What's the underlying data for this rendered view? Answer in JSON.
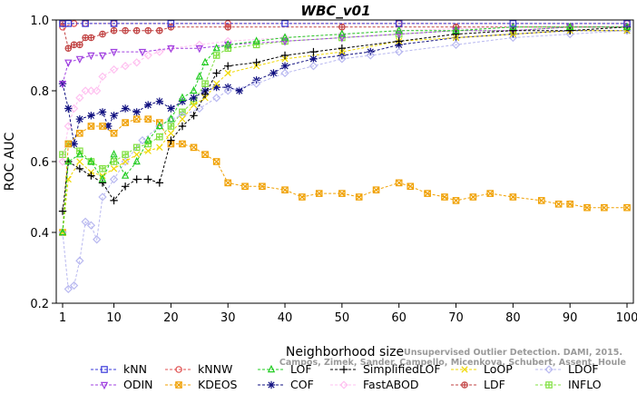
{
  "chart_data": {
    "type": "line",
    "title": "WBC_v01",
    "xlabel": "Neighborhood size",
    "ylabel": "ROC AUC",
    "xlim": [
      1,
      100
    ],
    "ylim": [
      0.2,
      1.0
    ],
    "x_ticks": [
      1,
      10,
      20,
      30,
      40,
      50,
      60,
      70,
      80,
      90,
      100
    ],
    "y_ticks": [
      0.2,
      0.4,
      0.6,
      0.8,
      1.0
    ],
    "x_tick_labels": [
      "1",
      "10",
      "20",
      "30",
      "40",
      "50",
      "60",
      "70",
      "80",
      "90",
      "100"
    ],
    "y_tick_labels": [
      "0.2",
      "0.4",
      "0.6",
      "0.8",
      "1.0"
    ],
    "grid": false,
    "legend_position": "bottom",
    "series": [
      {
        "name": "kNN",
        "color": "#3b3bdb",
        "marker": "square",
        "points": [
          [
            1,
            0.99
          ],
          [
            2,
            0.99
          ],
          [
            5,
            0.99
          ],
          [
            10,
            0.99
          ],
          [
            20,
            0.99
          ],
          [
            40,
            0.99
          ],
          [
            60,
            0.99
          ],
          [
            80,
            0.99
          ],
          [
            100,
            0.99
          ]
        ]
      },
      {
        "name": "kNNW",
        "color": "#e05050",
        "marker": "circle",
        "points": [
          [
            1,
            0.98
          ],
          [
            3,
            0.99
          ],
          [
            5,
            0.99
          ],
          [
            10,
            0.99
          ],
          [
            30,
            0.99
          ],
          [
            60,
            0.99
          ],
          [
            100,
            0.99
          ]
        ]
      },
      {
        "name": "LOF",
        "color": "#22cc22",
        "marker": "triangle",
        "points": [
          [
            1,
            0.4
          ],
          [
            2,
            0.6
          ],
          [
            4,
            0.62
          ],
          [
            6,
            0.6
          ],
          [
            8,
            0.55
          ],
          [
            10,
            0.62
          ],
          [
            12,
            0.56
          ],
          [
            14,
            0.6
          ],
          [
            16,
            0.66
          ],
          [
            18,
            0.7
          ],
          [
            20,
            0.72
          ],
          [
            22,
            0.78
          ],
          [
            24,
            0.8
          ],
          [
            25,
            0.84
          ],
          [
            26,
            0.88
          ],
          [
            28,
            0.92
          ],
          [
            30,
            0.93
          ],
          [
            35,
            0.94
          ],
          [
            40,
            0.95
          ],
          [
            50,
            0.96
          ],
          [
            60,
            0.97
          ],
          [
            70,
            0.97
          ],
          [
            80,
            0.98
          ],
          [
            90,
            0.98
          ],
          [
            100,
            0.98
          ]
        ]
      },
      {
        "name": "SimplifiedLOF",
        "color": "#000000",
        "marker": "plus",
        "points": [
          [
            1,
            0.46
          ],
          [
            2,
            0.6
          ],
          [
            4,
            0.58
          ],
          [
            6,
            0.56
          ],
          [
            8,
            0.54
          ],
          [
            10,
            0.49
          ],
          [
            12,
            0.53
          ],
          [
            14,
            0.55
          ],
          [
            16,
            0.55
          ],
          [
            18,
            0.54
          ],
          [
            20,
            0.66
          ],
          [
            22,
            0.7
          ],
          [
            24,
            0.73
          ],
          [
            26,
            0.79
          ],
          [
            28,
            0.85
          ],
          [
            30,
            0.87
          ],
          [
            35,
            0.88
          ],
          [
            40,
            0.9
          ],
          [
            45,
            0.91
          ],
          [
            50,
            0.92
          ],
          [
            60,
            0.94
          ],
          [
            70,
            0.96
          ],
          [
            80,
            0.97
          ],
          [
            90,
            0.97
          ],
          [
            100,
            0.98
          ]
        ]
      },
      {
        "name": "LoOP",
        "color": "#f0d800",
        "marker": "x",
        "points": [
          [
            1,
            0.4
          ],
          [
            2,
            0.55
          ],
          [
            4,
            0.6
          ],
          [
            6,
            0.57
          ],
          [
            8,
            0.56
          ],
          [
            10,
            0.58
          ],
          [
            12,
            0.6
          ],
          [
            14,
            0.62
          ],
          [
            16,
            0.63
          ],
          [
            18,
            0.64
          ],
          [
            20,
            0.68
          ],
          [
            22,
            0.72
          ],
          [
            24,
            0.76
          ],
          [
            26,
            0.78
          ],
          [
            28,
            0.82
          ],
          [
            30,
            0.85
          ],
          [
            35,
            0.87
          ],
          [
            40,
            0.89
          ],
          [
            50,
            0.91
          ],
          [
            60,
            0.94
          ],
          [
            70,
            0.95
          ],
          [
            80,
            0.96
          ],
          [
            90,
            0.97
          ],
          [
            100,
            0.97
          ]
        ]
      },
      {
        "name": "LDOF",
        "color": "#b8b8f0",
        "marker": "diamond",
        "points": [
          [
            1,
            0.4
          ],
          [
            2,
            0.24
          ],
          [
            3,
            0.25
          ],
          [
            4,
            0.32
          ],
          [
            5,
            0.43
          ],
          [
            6,
            0.42
          ],
          [
            7,
            0.38
          ],
          [
            8,
            0.5
          ],
          [
            10,
            0.55
          ],
          [
            12,
            0.6
          ],
          [
            15,
            0.66
          ],
          [
            18,
            0.7
          ],
          [
            20,
            0.72
          ],
          [
            22,
            0.73
          ],
          [
            25,
            0.75
          ],
          [
            28,
            0.78
          ],
          [
            30,
            0.8
          ],
          [
            35,
            0.82
          ],
          [
            40,
            0.85
          ],
          [
            45,
            0.87
          ],
          [
            50,
            0.89
          ],
          [
            55,
            0.9
          ],
          [
            60,
            0.91
          ],
          [
            70,
            0.93
          ],
          [
            80,
            0.95
          ],
          [
            90,
            0.96
          ],
          [
            100,
            0.97
          ]
        ]
      },
      {
        "name": "ODIN",
        "color": "#a040e0",
        "marker": "triangle-down",
        "points": [
          [
            1,
            0.82
          ],
          [
            2,
            0.88
          ],
          [
            4,
            0.89
          ],
          [
            6,
            0.9
          ],
          [
            8,
            0.9
          ],
          [
            10,
            0.91
          ],
          [
            15,
            0.91
          ],
          [
            20,
            0.92
          ],
          [
            25,
            0.92
          ],
          [
            30,
            0.93
          ],
          [
            40,
            0.94
          ],
          [
            50,
            0.95
          ],
          [
            60,
            0.96
          ],
          [
            70,
            0.97
          ],
          [
            80,
            0.97
          ],
          [
            90,
            0.98
          ],
          [
            100,
            0.98
          ]
        ]
      },
      {
        "name": "KDEOS",
        "color": "#f0a000",
        "marker": "square-x",
        "points": [
          [
            1,
            0.4
          ],
          [
            2,
            0.65
          ],
          [
            4,
            0.68
          ],
          [
            6,
            0.7
          ],
          [
            8,
            0.7
          ],
          [
            10,
            0.68
          ],
          [
            12,
            0.71
          ],
          [
            14,
            0.72
          ],
          [
            16,
            0.72
          ],
          [
            18,
            0.71
          ],
          [
            20,
            0.65
          ],
          [
            22,
            0.65
          ],
          [
            24,
            0.64
          ],
          [
            26,
            0.62
          ],
          [
            28,
            0.6
          ],
          [
            30,
            0.54
          ],
          [
            33,
            0.53
          ],
          [
            36,
            0.53
          ],
          [
            40,
            0.52
          ],
          [
            43,
            0.5
          ],
          [
            46,
            0.51
          ],
          [
            50,
            0.51
          ],
          [
            53,
            0.5
          ],
          [
            56,
            0.52
          ],
          [
            60,
            0.54
          ],
          [
            62,
            0.53
          ],
          [
            65,
            0.51
          ],
          [
            68,
            0.5
          ],
          [
            70,
            0.49
          ],
          [
            73,
            0.5
          ],
          [
            76,
            0.51
          ],
          [
            80,
            0.5
          ],
          [
            85,
            0.49
          ],
          [
            88,
            0.48
          ],
          [
            90,
            0.48
          ],
          [
            93,
            0.47
          ],
          [
            96,
            0.47
          ],
          [
            100,
            0.47
          ]
        ]
      },
      {
        "name": "COF",
        "color": "#101080",
        "marker": "star",
        "points": [
          [
            1,
            0.82
          ],
          [
            2,
            0.75
          ],
          [
            3,
            0.65
          ],
          [
            4,
            0.72
          ],
          [
            6,
            0.73
          ],
          [
            8,
            0.74
          ],
          [
            9,
            0.7
          ],
          [
            10,
            0.73
          ],
          [
            12,
            0.75
          ],
          [
            14,
            0.74
          ],
          [
            16,
            0.76
          ],
          [
            18,
            0.77
          ],
          [
            20,
            0.75
          ],
          [
            22,
            0.77
          ],
          [
            24,
            0.78
          ],
          [
            26,
            0.8
          ],
          [
            28,
            0.81
          ],
          [
            30,
            0.81
          ],
          [
            32,
            0.8
          ],
          [
            35,
            0.83
          ],
          [
            38,
            0.85
          ],
          [
            40,
            0.87
          ],
          [
            45,
            0.89
          ],
          [
            50,
            0.9
          ],
          [
            55,
            0.91
          ],
          [
            60,
            0.93
          ],
          [
            70,
            0.95
          ],
          [
            80,
            0.96
          ],
          [
            90,
            0.97
          ],
          [
            100,
            0.97
          ]
        ]
      },
      {
        "name": "FastABOD",
        "color": "#ffc0f0",
        "marker": "diamond",
        "points": [
          [
            1,
            0.6
          ],
          [
            2,
            0.7
          ],
          [
            3,
            0.75
          ],
          [
            4,
            0.78
          ],
          [
            5,
            0.8
          ],
          [
            6,
            0.8
          ],
          [
            7,
            0.8
          ],
          [
            8,
            0.84
          ],
          [
            10,
            0.86
          ],
          [
            12,
            0.87
          ],
          [
            14,
            0.88
          ],
          [
            16,
            0.9
          ],
          [
            18,
            0.91
          ],
          [
            20,
            0.92
          ],
          [
            25,
            0.93
          ],
          [
            30,
            0.94
          ],
          [
            40,
            0.95
          ],
          [
            50,
            0.96
          ],
          [
            60,
            0.97
          ],
          [
            80,
            0.98
          ],
          [
            100,
            0.98
          ]
        ]
      },
      {
        "name": "LDF",
        "color": "#c04040",
        "marker": "circle-plus",
        "points": [
          [
            1,
            0.99
          ],
          [
            2,
            0.92
          ],
          [
            3,
            0.93
          ],
          [
            4,
            0.93
          ],
          [
            5,
            0.95
          ],
          [
            6,
            0.95
          ],
          [
            8,
            0.96
          ],
          [
            10,
            0.97
          ],
          [
            12,
            0.97
          ],
          [
            14,
            0.97
          ],
          [
            16,
            0.97
          ],
          [
            18,
            0.97
          ],
          [
            20,
            0.98
          ],
          [
            30,
            0.98
          ],
          [
            50,
            0.98
          ],
          [
            70,
            0.98
          ],
          [
            100,
            0.98
          ]
        ]
      },
      {
        "name": "INFLO",
        "color": "#80e040",
        "marker": "square-plus",
        "points": [
          [
            1,
            0.62
          ],
          [
            2,
            0.65
          ],
          [
            4,
            0.63
          ],
          [
            6,
            0.6
          ],
          [
            8,
            0.58
          ],
          [
            10,
            0.6
          ],
          [
            12,
            0.62
          ],
          [
            14,
            0.64
          ],
          [
            16,
            0.65
          ],
          [
            18,
            0.67
          ],
          [
            20,
            0.7
          ],
          [
            22,
            0.74
          ],
          [
            24,
            0.77
          ],
          [
            26,
            0.82
          ],
          [
            28,
            0.9
          ],
          [
            30,
            0.92
          ],
          [
            35,
            0.93
          ],
          [
            40,
            0.94
          ],
          [
            50,
            0.95
          ],
          [
            60,
            0.96
          ],
          [
            70,
            0.97
          ],
          [
            80,
            0.97
          ],
          [
            90,
            0.98
          ],
          [
            100,
            0.98
          ]
        ]
      }
    ]
  },
  "watermark": {
    "line1": "Unsupervised Outlier Detection. DAMI, 2015.",
    "line2": "Campos, Zimek, Sander, Campello, Micenkova, Schubert, Assent, Houle"
  }
}
